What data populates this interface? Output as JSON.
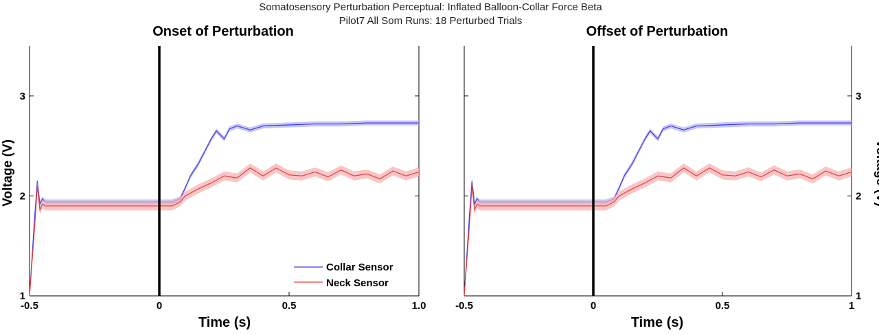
{
  "figure": {
    "suptitle_line1": "Somatosensory Perturbation Perceptual: Inflated Balloon-Collar Force Beta",
    "suptitle_line2": "Pilot7 All Som Runs: 18 Perturbed Trials"
  },
  "colors": {
    "collar": "#3a3ae8",
    "collar_band": "#b3b3f2",
    "neck": "#e83a3a",
    "neck_band": "#f5b3b3",
    "axis": "#000000",
    "event_line": "#000000"
  },
  "chart_data": [
    {
      "type": "line",
      "title": "Onset of Perturbation",
      "xlabel": "Time (s)",
      "ylabel": "Voltage (V)",
      "xlim": [
        -0.5,
        1.0
      ],
      "ylim": [
        1,
        3.5
      ],
      "xticks": [
        -0.5,
        0,
        0.5,
        1.0
      ],
      "xtick_labels": [
        "-0.5",
        "0",
        "0.5",
        "1.0"
      ],
      "yticks": [
        1,
        2,
        3
      ],
      "ytick_labels": [
        "1",
        "2",
        "3"
      ],
      "event_line_x": 0,
      "legend_position": "bottom-right",
      "series": [
        {
          "name": "Collar Sensor",
          "x": [
            -0.5,
            -0.48,
            -0.47,
            -0.46,
            -0.45,
            -0.44,
            -0.4,
            -0.2,
            0,
            0.05,
            0.08,
            0.1,
            0.12,
            0.15,
            0.18,
            0.2,
            0.22,
            0.25,
            0.27,
            0.3,
            0.35,
            0.4,
            0.5,
            0.6,
            0.7,
            0.8,
            0.9,
            1.0
          ],
          "y": [
            1.0,
            1.8,
            2.15,
            1.92,
            1.97,
            1.94,
            1.94,
            1.94,
            1.94,
            1.94,
            1.97,
            2.08,
            2.2,
            2.32,
            2.47,
            2.57,
            2.65,
            2.57,
            2.67,
            2.7,
            2.66,
            2.7,
            2.71,
            2.72,
            2.72,
            2.73,
            2.73,
            2.73
          ],
          "band": 0.025
        },
        {
          "name": "Neck Sensor",
          "x": [
            -0.5,
            -0.48,
            -0.47,
            -0.46,
            -0.45,
            -0.44,
            -0.4,
            -0.2,
            0,
            0.05,
            0.08,
            0.1,
            0.15,
            0.2,
            0.25,
            0.3,
            0.35,
            0.4,
            0.45,
            0.5,
            0.55,
            0.6,
            0.65,
            0.7,
            0.75,
            0.8,
            0.85,
            0.9,
            0.95,
            1.0
          ],
          "y": [
            1.0,
            1.7,
            2.1,
            1.86,
            1.92,
            1.9,
            1.9,
            1.9,
            1.9,
            1.9,
            1.94,
            2.0,
            2.07,
            2.13,
            2.2,
            2.18,
            2.28,
            2.2,
            2.28,
            2.21,
            2.2,
            2.24,
            2.19,
            2.26,
            2.2,
            2.22,
            2.17,
            2.25,
            2.2,
            2.24
          ],
          "band": 0.045
        }
      ]
    },
    {
      "type": "line",
      "title": "Offset of Perturbation",
      "xlabel": "Time (s)",
      "ylabel": "Voltage (V)",
      "xlim": [
        -0.5,
        1.0
      ],
      "ylim": [
        1,
        3.5
      ],
      "xticks": [
        -0.5,
        0,
        0.5,
        1.0
      ],
      "xtick_labels": [
        "-0.5",
        "0",
        "0.5",
        "1"
      ],
      "yticks": [
        1,
        2,
        3
      ],
      "ytick_labels": [
        "1",
        "2",
        "3"
      ],
      "event_line_x": 0,
      "series": [
        {
          "name": "Collar Sensor",
          "x": [
            -0.5,
            -0.48,
            -0.47,
            -0.46,
            -0.45,
            -0.44,
            -0.4,
            -0.2,
            0,
            0.05,
            0.08,
            0.1,
            0.12,
            0.15,
            0.18,
            0.2,
            0.22,
            0.25,
            0.27,
            0.3,
            0.35,
            0.4,
            0.5,
            0.6,
            0.7,
            0.8,
            0.9,
            1.0
          ],
          "y": [
            1.0,
            1.8,
            2.15,
            1.92,
            1.97,
            1.94,
            1.94,
            1.94,
            1.94,
            1.94,
            1.97,
            2.08,
            2.2,
            2.32,
            2.47,
            2.57,
            2.65,
            2.57,
            2.67,
            2.7,
            2.66,
            2.7,
            2.71,
            2.72,
            2.72,
            2.73,
            2.73,
            2.73
          ],
          "band": 0.025
        },
        {
          "name": "Neck Sensor",
          "x": [
            -0.5,
            -0.48,
            -0.47,
            -0.46,
            -0.45,
            -0.44,
            -0.4,
            -0.2,
            0,
            0.05,
            0.08,
            0.1,
            0.15,
            0.2,
            0.25,
            0.3,
            0.35,
            0.4,
            0.45,
            0.5,
            0.55,
            0.6,
            0.65,
            0.7,
            0.75,
            0.8,
            0.85,
            0.9,
            0.95,
            1.0
          ],
          "y": [
            1.0,
            1.7,
            2.1,
            1.86,
            1.92,
            1.9,
            1.9,
            1.9,
            1.9,
            1.9,
            1.94,
            2.0,
            2.07,
            2.13,
            2.2,
            2.18,
            2.28,
            2.2,
            2.28,
            2.21,
            2.2,
            2.24,
            2.19,
            2.26,
            2.2,
            2.22,
            2.17,
            2.25,
            2.2,
            2.24
          ],
          "band": 0.045
        }
      ]
    }
  ]
}
